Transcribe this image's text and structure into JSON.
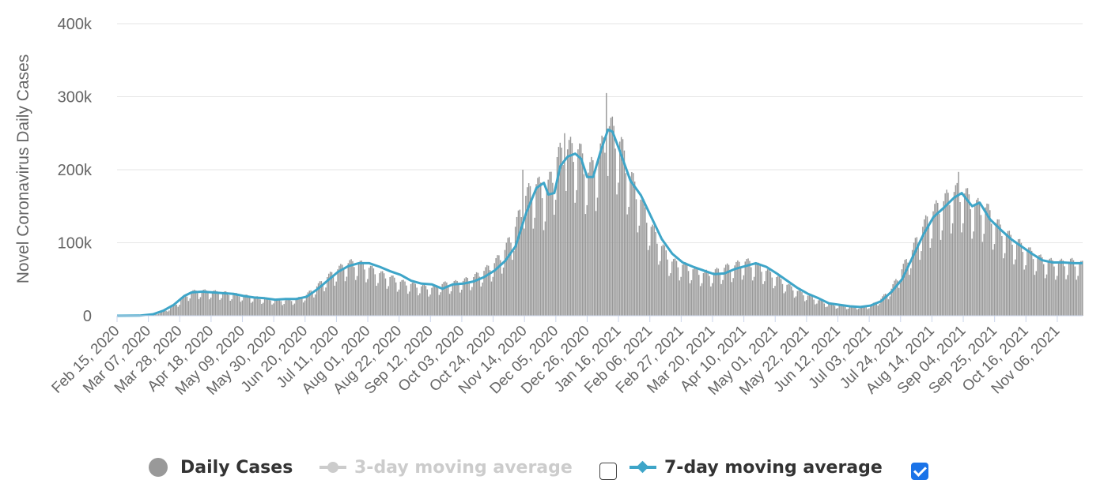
{
  "chart_data": {
    "type": "bar",
    "ylabel": "Novel Coronavirus Daily Cases",
    "ylim": [
      0,
      400000
    ],
    "yticks": [
      0,
      100000,
      200000,
      300000,
      400000
    ],
    "ytick_labels": [
      "0",
      "100k",
      "200k",
      "300k",
      "400k"
    ],
    "x_start": "2020-02-15",
    "x_end": "2021-11-23",
    "xtick_labels": [
      "Feb 15, 2020",
      "Mar 07, 2020",
      "Mar 28, 2020",
      "Apr 18, 2020",
      "May 09, 2020",
      "May 30, 2020",
      "Jun 20, 2020",
      "Jul 11, 2020",
      "Aug 01, 2020",
      "Aug 22, 2020",
      "Sep 12, 2020",
      "Oct 03, 2020",
      "Oct 24, 2020",
      "Nov 14, 2020",
      "Dec 05, 2020",
      "Dec 26, 2020",
      "Jan 16, 2021",
      "Feb 06, 2021",
      "Feb 27, 2021",
      "Mar 20, 2021",
      "Apr 10, 2021",
      "May 01, 2021",
      "May 22, 2021",
      "Jun 12, 2021",
      "Jul 03, 2021",
      "Jul 24, 2021",
      "Aug 14, 2021",
      "Sep 04, 2021",
      "Sep 25, 2021",
      "Oct 16, 2021",
      "Nov 06, 2021"
    ],
    "grid": true,
    "legend_position": "bottom",
    "series": [
      {
        "name": "Daily Cases",
        "kind": "bar",
        "color": "#999999",
        "visible": true,
        "trend": [
          [
            "2020-02-15",
            0
          ],
          [
            "2020-03-01",
            100
          ],
          [
            "2020-03-10",
            1000
          ],
          [
            "2020-03-17",
            5000
          ],
          [
            "2020-03-24",
            12000
          ],
          [
            "2020-03-31",
            24000
          ],
          [
            "2020-04-05",
            31000
          ],
          [
            "2020-04-12",
            32000
          ],
          [
            "2020-04-26",
            30000
          ],
          [
            "2020-05-10",
            26000
          ],
          [
            "2020-05-24",
            22000
          ],
          [
            "2020-06-07",
            20000
          ],
          [
            "2020-06-14",
            21000
          ],
          [
            "2020-06-21",
            27000
          ],
          [
            "2020-06-28",
            38000
          ],
          [
            "2020-07-05",
            50000
          ],
          [
            "2020-07-12",
            60000
          ],
          [
            "2020-07-19",
            68000
          ],
          [
            "2020-07-26",
            68000
          ],
          [
            "2020-08-02",
            62000
          ],
          [
            "2020-08-09",
            55000
          ],
          [
            "2020-08-16",
            50000
          ],
          [
            "2020-08-23",
            44000
          ],
          [
            "2020-08-30",
            41000
          ],
          [
            "2020-09-06",
            38000
          ],
          [
            "2020-09-13",
            36000
          ],
          [
            "2020-09-20",
            41000
          ],
          [
            "2020-09-27",
            42000
          ],
          [
            "2020-10-04",
            45000
          ],
          [
            "2020-10-11",
            50000
          ],
          [
            "2020-10-18",
            58000
          ],
          [
            "2020-10-25",
            68000
          ],
          [
            "2020-11-01",
            85000
          ],
          [
            "2020-11-08",
            115000
          ],
          [
            "2020-11-15",
            155000
          ],
          [
            "2020-11-22",
            170000
          ],
          [
            "2020-11-29",
            160000
          ],
          [
            "2020-12-06",
            205000
          ],
          [
            "2020-12-13",
            215000
          ],
          [
            "2020-12-20",
            215000
          ],
          [
            "2020-12-27",
            185000
          ],
          [
            "2021-01-03",
            205000
          ],
          [
            "2021-01-10",
            245000
          ],
          [
            "2021-01-17",
            225000
          ],
          [
            "2021-01-24",
            180000
          ],
          [
            "2021-01-31",
            150000
          ],
          [
            "2021-02-07",
            115000
          ],
          [
            "2021-02-14",
            90000
          ],
          [
            "2021-02-21",
            70000
          ],
          [
            "2021-02-28",
            66000
          ],
          [
            "2021-03-07",
            60000
          ],
          [
            "2021-03-14",
            55000
          ],
          [
            "2021-03-21",
            56000
          ],
          [
            "2021-03-28",
            62000
          ],
          [
            "2021-04-04",
            65000
          ],
          [
            "2021-04-11",
            70000
          ],
          [
            "2021-04-18",
            66000
          ],
          [
            "2021-04-25",
            58000
          ],
          [
            "2021-05-02",
            50000
          ],
          [
            "2021-05-09",
            40000
          ],
          [
            "2021-05-16",
            32000
          ],
          [
            "2021-05-23",
            26000
          ],
          [
            "2021-05-30",
            20000
          ],
          [
            "2021-06-06",
            15000
          ],
          [
            "2021-06-13",
            13000
          ],
          [
            "2021-06-20",
            12000
          ],
          [
            "2021-06-27",
            12000
          ],
          [
            "2021-07-04",
            13000
          ],
          [
            "2021-07-11",
            22000
          ],
          [
            "2021-07-18",
            35000
          ],
          [
            "2021-07-25",
            60000
          ],
          [
            "2021-08-01",
            85000
          ],
          [
            "2021-08-08",
            115000
          ],
          [
            "2021-08-15",
            135000
          ],
          [
            "2021-08-22",
            148000
          ],
          [
            "2021-08-29",
            160000
          ],
          [
            "2021-09-05",
            158000
          ],
          [
            "2021-09-12",
            142000
          ],
          [
            "2021-09-19",
            140000
          ],
          [
            "2021-09-26",
            120000
          ],
          [
            "2021-10-03",
            105000
          ],
          [
            "2021-10-10",
            95000
          ],
          [
            "2021-10-17",
            85000
          ],
          [
            "2021-10-24",
            75000
          ],
          [
            "2021-10-31",
            70000
          ],
          [
            "2021-11-07",
            68000
          ],
          [
            "2021-11-14",
            70000
          ],
          [
            "2021-11-21",
            68000
          ],
          [
            "2021-11-23",
            66000
          ]
        ],
        "peaks": [
          [
            "2020-11-13",
            200000
          ],
          [
            "2020-12-11",
            250000
          ],
          [
            "2021-01-08",
            305000
          ],
          [
            "2021-09-01",
            197000
          ]
        ]
      },
      {
        "name": "3-day moving average",
        "kind": "line",
        "color": "#cccccc",
        "visible": false
      },
      {
        "name": "7-day moving average",
        "kind": "line",
        "color": "#3ea5c8",
        "visible": true,
        "points": [
          [
            "2020-02-15",
            0
          ],
          [
            "2020-03-01",
            200
          ],
          [
            "2020-03-10",
            2000
          ],
          [
            "2020-03-17",
            7000
          ],
          [
            "2020-03-24",
            15000
          ],
          [
            "2020-03-31",
            27000
          ],
          [
            "2020-04-05",
            32000
          ],
          [
            "2020-04-12",
            33000
          ],
          [
            "2020-04-19",
            32000
          ],
          [
            "2020-04-26",
            31000
          ],
          [
            "2020-05-03",
            30000
          ],
          [
            "2020-05-10",
            27000
          ],
          [
            "2020-05-17",
            25000
          ],
          [
            "2020-05-24",
            24000
          ],
          [
            "2020-05-31",
            22000
          ],
          [
            "2020-06-07",
            23000
          ],
          [
            "2020-06-14",
            23000
          ],
          [
            "2020-06-21",
            26000
          ],
          [
            "2020-06-28",
            36000
          ],
          [
            "2020-07-05",
            48000
          ],
          [
            "2020-07-12",
            60000
          ],
          [
            "2020-07-19",
            68000
          ],
          [
            "2020-07-26",
            72000
          ],
          [
            "2020-08-02",
            72000
          ],
          [
            "2020-08-09",
            67000
          ],
          [
            "2020-08-16",
            61000
          ],
          [
            "2020-08-23",
            56000
          ],
          [
            "2020-08-30",
            48000
          ],
          [
            "2020-09-06",
            44000
          ],
          [
            "2020-09-13",
            43000
          ],
          [
            "2020-09-20",
            37000
          ],
          [
            "2020-09-27",
            43000
          ],
          [
            "2020-10-04",
            44000
          ],
          [
            "2020-10-11",
            47000
          ],
          [
            "2020-10-18",
            53000
          ],
          [
            "2020-10-25",
            62000
          ],
          [
            "2020-11-01",
            75000
          ],
          [
            "2020-11-08",
            95000
          ],
          [
            "2020-11-15",
            140000
          ],
          [
            "2020-11-22",
            175000
          ],
          [
            "2020-11-27",
            182000
          ],
          [
            "2020-11-30",
            166000
          ],
          [
            "2020-12-04",
            168000
          ],
          [
            "2020-12-08",
            205000
          ],
          [
            "2020-12-13",
            218000
          ],
          [
            "2020-12-18",
            222000
          ],
          [
            "2020-12-22",
            215000
          ],
          [
            "2020-12-26",
            190000
          ],
          [
            "2020-12-30",
            190000
          ],
          [
            "2021-01-04",
            225000
          ],
          [
            "2021-01-09",
            255000
          ],
          [
            "2021-01-12",
            252000
          ],
          [
            "2021-01-17",
            225000
          ],
          [
            "2021-01-24",
            185000
          ],
          [
            "2021-01-31",
            165000
          ],
          [
            "2021-02-07",
            135000
          ],
          [
            "2021-02-14",
            105000
          ],
          [
            "2021-02-21",
            85000
          ],
          [
            "2021-02-28",
            73000
          ],
          [
            "2021-03-07",
            67000
          ],
          [
            "2021-03-14",
            62000
          ],
          [
            "2021-03-21",
            57000
          ],
          [
            "2021-03-28",
            58000
          ],
          [
            "2021-04-04",
            64000
          ],
          [
            "2021-04-11",
            68000
          ],
          [
            "2021-04-18",
            72000
          ],
          [
            "2021-04-25",
            67000
          ],
          [
            "2021-05-02",
            58000
          ],
          [
            "2021-05-09",
            48000
          ],
          [
            "2021-05-16",
            38000
          ],
          [
            "2021-05-23",
            30000
          ],
          [
            "2021-05-30",
            24000
          ],
          [
            "2021-06-06",
            17000
          ],
          [
            "2021-06-13",
            15000
          ],
          [
            "2021-06-20",
            13000
          ],
          [
            "2021-06-27",
            12000
          ],
          [
            "2021-07-04",
            14000
          ],
          [
            "2021-07-11",
            20000
          ],
          [
            "2021-07-18",
            33000
          ],
          [
            "2021-07-25",
            50000
          ],
          [
            "2021-08-01",
            80000
          ],
          [
            "2021-08-08",
            110000
          ],
          [
            "2021-08-15",
            135000
          ],
          [
            "2021-08-22",
            148000
          ],
          [
            "2021-08-29",
            162000
          ],
          [
            "2021-09-03",
            168000
          ],
          [
            "2021-09-10",
            150000
          ],
          [
            "2021-09-15",
            155000
          ],
          [
            "2021-09-22",
            132000
          ],
          [
            "2021-09-29",
            118000
          ],
          [
            "2021-10-06",
            105000
          ],
          [
            "2021-10-13",
            95000
          ],
          [
            "2021-10-20",
            85000
          ],
          [
            "2021-10-27",
            76000
          ],
          [
            "2021-11-03",
            73000
          ],
          [
            "2021-11-10",
            73000
          ],
          [
            "2021-11-17",
            72000
          ],
          [
            "2021-11-23",
            72000
          ]
        ]
      }
    ]
  },
  "legend": {
    "items": [
      {
        "label": "Daily Cases"
      },
      {
        "label": "3-day moving average"
      },
      {
        "label": "7-day moving average"
      }
    ]
  }
}
